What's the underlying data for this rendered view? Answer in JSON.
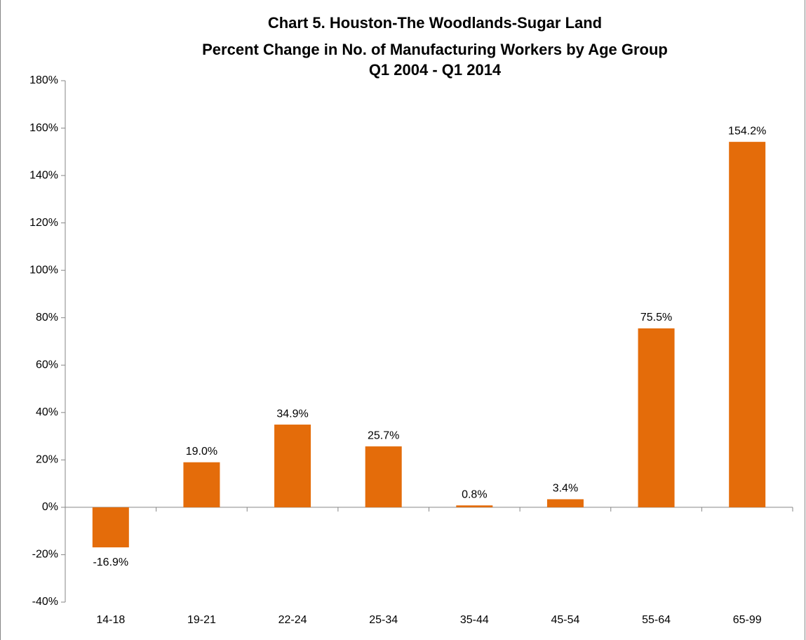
{
  "chart_data": {
    "type": "bar",
    "title": [
      "Chart 5. Houston-The Woodlands-Sugar Land",
      "Percent Change in No. of Manufacturing Workers by Age Group",
      "Q1 2004 - Q1 2014"
    ],
    "categories": [
      "14-18",
      "19-21",
      "22-24",
      "25-34",
      "35-44",
      "45-54",
      "55-64",
      "65-99"
    ],
    "values": [
      -16.9,
      19.0,
      34.9,
      25.7,
      0.8,
      3.4,
      75.5,
      154.2
    ],
    "value_labels": [
      "-16.9%",
      "19.0%",
      "34.9%",
      "25.7%",
      "0.8%",
      "3.4%",
      "75.5%",
      "154.2%"
    ],
    "color": "#e46c0a",
    "ylim": [
      -40,
      180
    ],
    "yticks": [
      {
        "value": -40,
        "label": "-40%"
      },
      {
        "value": -20,
        "label": "-20%"
      },
      {
        "value": 0,
        "label": "0%"
      },
      {
        "value": 20,
        "label": "20%"
      },
      {
        "value": 40,
        "label": "40%"
      },
      {
        "value": 60,
        "label": "60%"
      },
      {
        "value": 80,
        "label": "80%"
      },
      {
        "value": 100,
        "label": "100%"
      },
      {
        "value": 120,
        "label": "120%"
      },
      {
        "value": 140,
        "label": "140%"
      },
      {
        "value": 160,
        "label": "160%"
      },
      {
        "value": 180,
        "label": "180%"
      }
    ],
    "grid": false
  }
}
